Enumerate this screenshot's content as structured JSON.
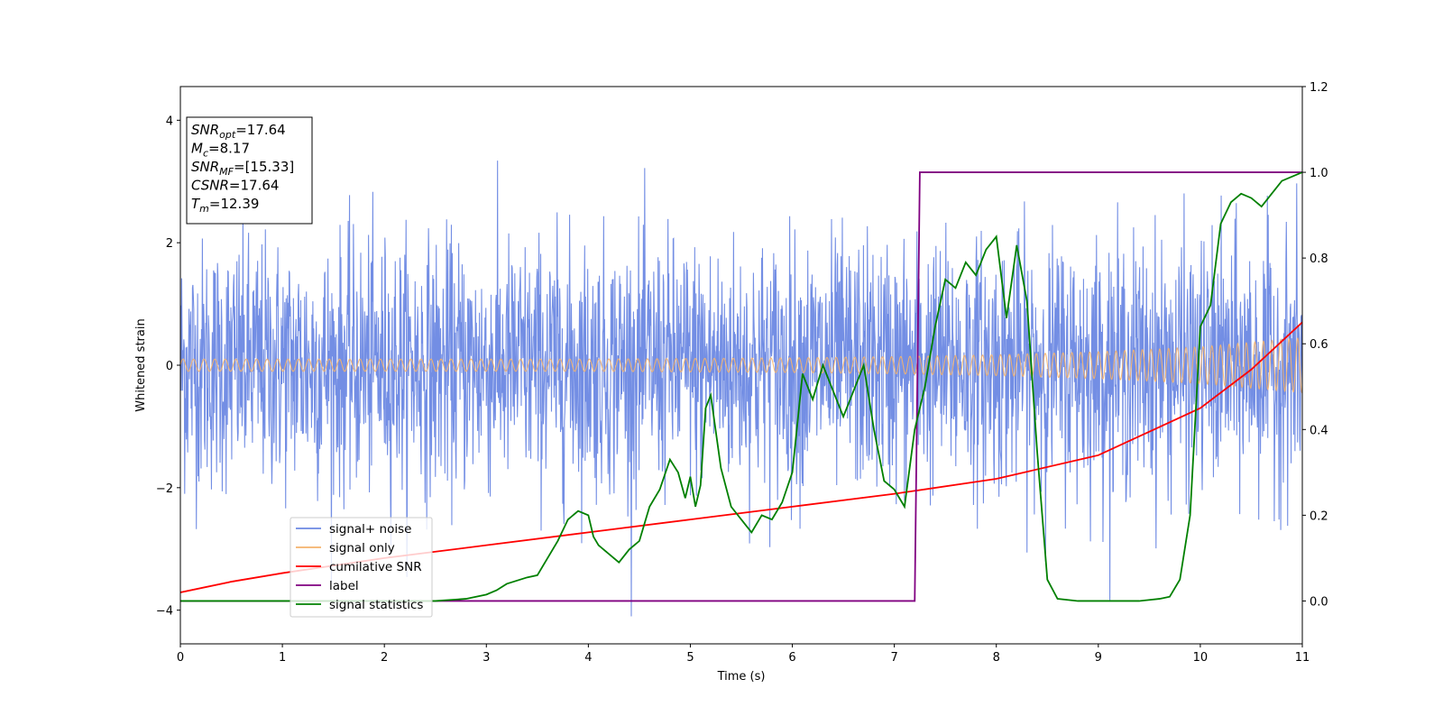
{
  "chart_data": {
    "type": "line",
    "xlabel": "Time (s)",
    "ylabel": "Whitened strain",
    "xlim": [
      0,
      11
    ],
    "ylim_left": [
      -4.55,
      4.55
    ],
    "ylim_right": [
      -0.1,
      1.2
    ],
    "x_ticks": [
      0,
      1,
      2,
      3,
      4,
      5,
      6,
      7,
      8,
      9,
      10,
      11
    ],
    "y_left_ticks": [
      -4,
      -2,
      0,
      2,
      4
    ],
    "y_right_ticks": [
      0.0,
      0.2,
      0.4,
      0.6,
      0.8,
      1.0,
      1.2
    ],
    "grid": false,
    "legend_position": "lower-left",
    "series": [
      {
        "name": "signal+ noise",
        "axis": "left",
        "color": "#6b88e3",
        "description_values": {
          "noise_std_approx": 1.0,
          "x_range": [
            0,
            11
          ]
        }
      },
      {
        "name": "signal only",
        "axis": "left",
        "color": "#f5b36b",
        "envelope": {
          "x": [
            0,
            2,
            4,
            6,
            7,
            8,
            9,
            10,
            11
          ],
          "amplitude": [
            0.1,
            0.1,
            0.1,
            0.12,
            0.14,
            0.17,
            0.22,
            0.3,
            0.45
          ]
        }
      },
      {
        "name": "cumilative SNR",
        "axis": "right",
        "color": "#ff0000",
        "x": [
          0,
          0.5,
          1,
          2,
          3,
          4,
          5,
          6,
          7,
          8,
          9,
          10,
          10.5,
          11
        ],
        "y": [
          0.02,
          0.045,
          0.065,
          0.1,
          0.13,
          0.16,
          0.19,
          0.22,
          0.25,
          0.285,
          0.34,
          0.45,
          0.54,
          0.65
        ]
      },
      {
        "name": "label",
        "axis": "right",
        "color": "#800080",
        "x": [
          0,
          7.2,
          7.25,
          11
        ],
        "y": [
          0.0,
          0.0,
          1.0,
          1.0
        ]
      },
      {
        "name": "signal statistics",
        "axis": "right",
        "color": "#008000",
        "x": [
          0,
          1,
          2,
          2.5,
          2.8,
          3.0,
          3.1,
          3.2,
          3.4,
          3.5,
          3.6,
          3.7,
          3.8,
          3.9,
          4.0,
          4.05,
          4.1,
          4.2,
          4.3,
          4.4,
          4.5,
          4.6,
          4.7,
          4.8,
          4.88,
          4.95,
          5.0,
          5.05,
          5.1,
          5.15,
          5.2,
          5.3,
          5.4,
          5.5,
          5.6,
          5.7,
          5.8,
          5.9,
          6.0,
          6.1,
          6.2,
          6.3,
          6.4,
          6.5,
          6.6,
          6.7,
          6.8,
          6.9,
          7.0,
          7.1,
          7.2,
          7.3,
          7.4,
          7.5,
          7.6,
          7.7,
          7.8,
          7.9,
          8.0,
          8.1,
          8.2,
          8.3,
          8.4,
          8.5,
          8.6,
          8.8,
          9.0,
          9.2,
          9.4,
          9.6,
          9.7,
          9.8,
          9.9,
          10.0,
          10.1,
          10.2,
          10.3,
          10.4,
          10.5,
          10.6,
          10.7,
          10.8,
          10.9,
          11.0
        ],
        "y": [
          0.0,
          0.0,
          0.0,
          0.0,
          0.005,
          0.015,
          0.025,
          0.04,
          0.055,
          0.06,
          0.1,
          0.14,
          0.19,
          0.21,
          0.2,
          0.15,
          0.13,
          0.11,
          0.09,
          0.12,
          0.14,
          0.22,
          0.26,
          0.33,
          0.3,
          0.24,
          0.29,
          0.22,
          0.27,
          0.45,
          0.48,
          0.31,
          0.22,
          0.19,
          0.16,
          0.2,
          0.19,
          0.23,
          0.3,
          0.53,
          0.47,
          0.55,
          0.49,
          0.43,
          0.49,
          0.55,
          0.4,
          0.28,
          0.26,
          0.22,
          0.4,
          0.5,
          0.64,
          0.75,
          0.73,
          0.79,
          0.76,
          0.82,
          0.85,
          0.66,
          0.83,
          0.7,
          0.35,
          0.05,
          0.005,
          0.0,
          0.0,
          0.0,
          0.0,
          0.005,
          0.01,
          0.05,
          0.2,
          0.64,
          0.69,
          0.88,
          0.93,
          0.95,
          0.94,
          0.92,
          0.95,
          0.98,
          0.99,
          1.0
        ]
      }
    ],
    "annotation_box": {
      "lines": [
        {
          "base": "SNR",
          "sub": "opt",
          "rest": "=17.64"
        },
        {
          "base": "M",
          "sub": "c",
          "rest": "=8.17"
        },
        {
          "base": "SNR",
          "sub": "MF",
          "rest": "=[15.33]"
        },
        {
          "base": "CSNR",
          "sub": "",
          "rest": "=17.64"
        },
        {
          "base": "T",
          "sub": "m",
          "rest": "=12.39"
        }
      ]
    }
  }
}
